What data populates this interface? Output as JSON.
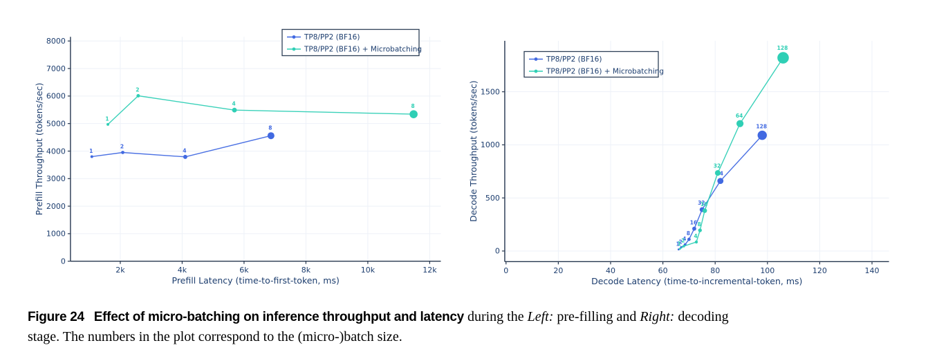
{
  "colors": {
    "series_blue": "#4169E1",
    "series_teal": "#2FCFB5",
    "axis_text": "#1C3D6E",
    "spine": "#27374F",
    "grid": "#EDF1F8",
    "legend_border": "#2E4057",
    "background": "#FFFFFF"
  },
  "chart_data": [
    {
      "id": "prefill",
      "type": "line",
      "title": "",
      "xlabel": "Prefill Latency (time-to-first-token, ms)",
      "ylabel": "Prefill Throughput (tokens/sec)",
      "xlim": [
        390,
        12360
      ],
      "ylim": [
        0,
        8150
      ],
      "grid": true,
      "legend_position": "top-right-inner",
      "xticks": [
        {
          "v": 2000,
          "label": "2k"
        },
        {
          "v": 4000,
          "label": "4k"
        },
        {
          "v": 6000,
          "label": "6k"
        },
        {
          "v": 8000,
          "label": "8k"
        },
        {
          "v": 10000,
          "label": "10k"
        },
        {
          "v": 12000,
          "label": "12k"
        }
      ],
      "yticks": [
        {
          "v": 0,
          "label": "0"
        },
        {
          "v": 1000,
          "label": "1000"
        },
        {
          "v": 2000,
          "label": "2000"
        },
        {
          "v": 3000,
          "label": "3000"
        },
        {
          "v": 4000,
          "label": "4000"
        },
        {
          "v": 5000,
          "label": "5000"
        },
        {
          "v": 6000,
          "label": "6000"
        },
        {
          "v": 7000,
          "label": "7000"
        },
        {
          "v": 8000,
          "label": "8000"
        }
      ],
      "series": [
        {
          "name": "TP8/PP2 (BF16)",
          "color": "#4169E1",
          "points": [
            {
              "x": 1080,
              "y": 3800,
              "label": "1",
              "r": 2.0
            },
            {
              "x": 2080,
              "y": 3950,
              "label": "2",
              "r": 2.4
            },
            {
              "x": 4100,
              "y": 3790,
              "label": "4",
              "r": 3.0
            },
            {
              "x": 6870,
              "y": 4560,
              "label": "8",
              "r": 5.0
            }
          ]
        },
        {
          "name": "TP8/PP2 (BF16) + Microbatching",
          "color": "#2FCFB5",
          "points": [
            {
              "x": 1600,
              "y": 4970,
              "label": "1",
              "r": 2.0
            },
            {
              "x": 2580,
              "y": 6010,
              "label": "2",
              "r": 2.5
            },
            {
              "x": 5690,
              "y": 5490,
              "label": "4",
              "r": 3.4
            },
            {
              "x": 11480,
              "y": 5340,
              "label": "8",
              "r": 5.8
            }
          ]
        }
      ]
    },
    {
      "id": "decode",
      "type": "line",
      "title": "",
      "xlabel": "Decode Latency (time-to-incremental-token, ms)",
      "ylabel": "Decode Throughput (tokens/sec)",
      "xlim": [
        -0.5,
        146.5
      ],
      "ylim": [
        -100,
        1980
      ],
      "grid": true,
      "legend_position": "top-left-inner",
      "xticks": [
        {
          "v": 0,
          "label": "0"
        },
        {
          "v": 20,
          "label": "20"
        },
        {
          "v": 40,
          "label": "40"
        },
        {
          "v": 60,
          "label": "60"
        },
        {
          "v": 80,
          "label": "80"
        },
        {
          "v": 100,
          "label": "100"
        },
        {
          "v": 120,
          "label": "120"
        },
        {
          "v": 140,
          "label": "140"
        }
      ],
      "yticks": [
        {
          "v": 0,
          "label": "0"
        },
        {
          "v": 500,
          "label": "500"
        },
        {
          "v": 1000,
          "label": "1000"
        },
        {
          "v": 1500,
          "label": "1500"
        }
      ],
      "series": [
        {
          "name": "TP8/PP2 (BF16)",
          "color": "#4169E1",
          "points": [
            {
              "x": 66,
              "y": 15,
              "label": "1",
              "r": 1.4
            },
            {
              "x": 67,
              "y": 35,
              "label": "2",
              "r": 1.7
            },
            {
              "x": 68.5,
              "y": 60,
              "label": "4",
              "r": 2.0
            },
            {
              "x": 70,
              "y": 110,
              "label": "8",
              "r": 2.4
            },
            {
              "x": 72,
              "y": 210,
              "label": "16",
              "r": 2.9
            },
            {
              "x": 75,
              "y": 390,
              "label": "32",
              "r": 3.5
            },
            {
              "x": 82,
              "y": 660,
              "label": "64",
              "r": 4.4
            },
            {
              "x": 98,
              "y": 1090,
              "label": "128",
              "r": 6.7
            }
          ]
        },
        {
          "name": "TP8/PP2 (BF16) + Microbatching",
          "color": "#2FCFB5",
          "points": [
            {
              "x": 66.5,
              "y": 20,
              "label": "1",
              "r": 1.4
            },
            {
              "x": 68,
              "y": 45,
              "label": "2",
              "r": 1.8
            },
            {
              "x": 72.8,
              "y": 85,
              "label": "4",
              "r": 2.2
            },
            {
              "x": 74.2,
              "y": 195,
              "label": "8",
              "r": 2.7
            },
            {
              "x": 76,
              "y": 380,
              "label": "16",
              "r": 3.3
            },
            {
              "x": 81,
              "y": 735,
              "label": "32",
              "r": 4.1
            },
            {
              "x": 89.5,
              "y": 1200,
              "label": "64",
              "r": 5.1
            },
            {
              "x": 106,
              "y": 1820,
              "label": "128",
              "r": 8.3
            }
          ]
        }
      ]
    }
  ],
  "caption": {
    "lines": [
      [
        {
          "t": "Figure 24",
          "s": "figlabel"
        },
        {
          "t": "Effect of micro-batching on inference throughput and latency",
          "s": "bold"
        },
        {
          "t": " during the ",
          "s": "serif"
        },
        {
          "t": "Left:",
          "s": "italic"
        },
        {
          "t": " pre-filling and ",
          "s": "serif"
        },
        {
          "t": "Right:",
          "s": "italic"
        },
        {
          "t": " decoding",
          "s": "serif"
        }
      ],
      [
        {
          "t": "stage. The numbers in the plot correspond to the (micro-)batch size.",
          "s": "serif"
        }
      ]
    ]
  }
}
